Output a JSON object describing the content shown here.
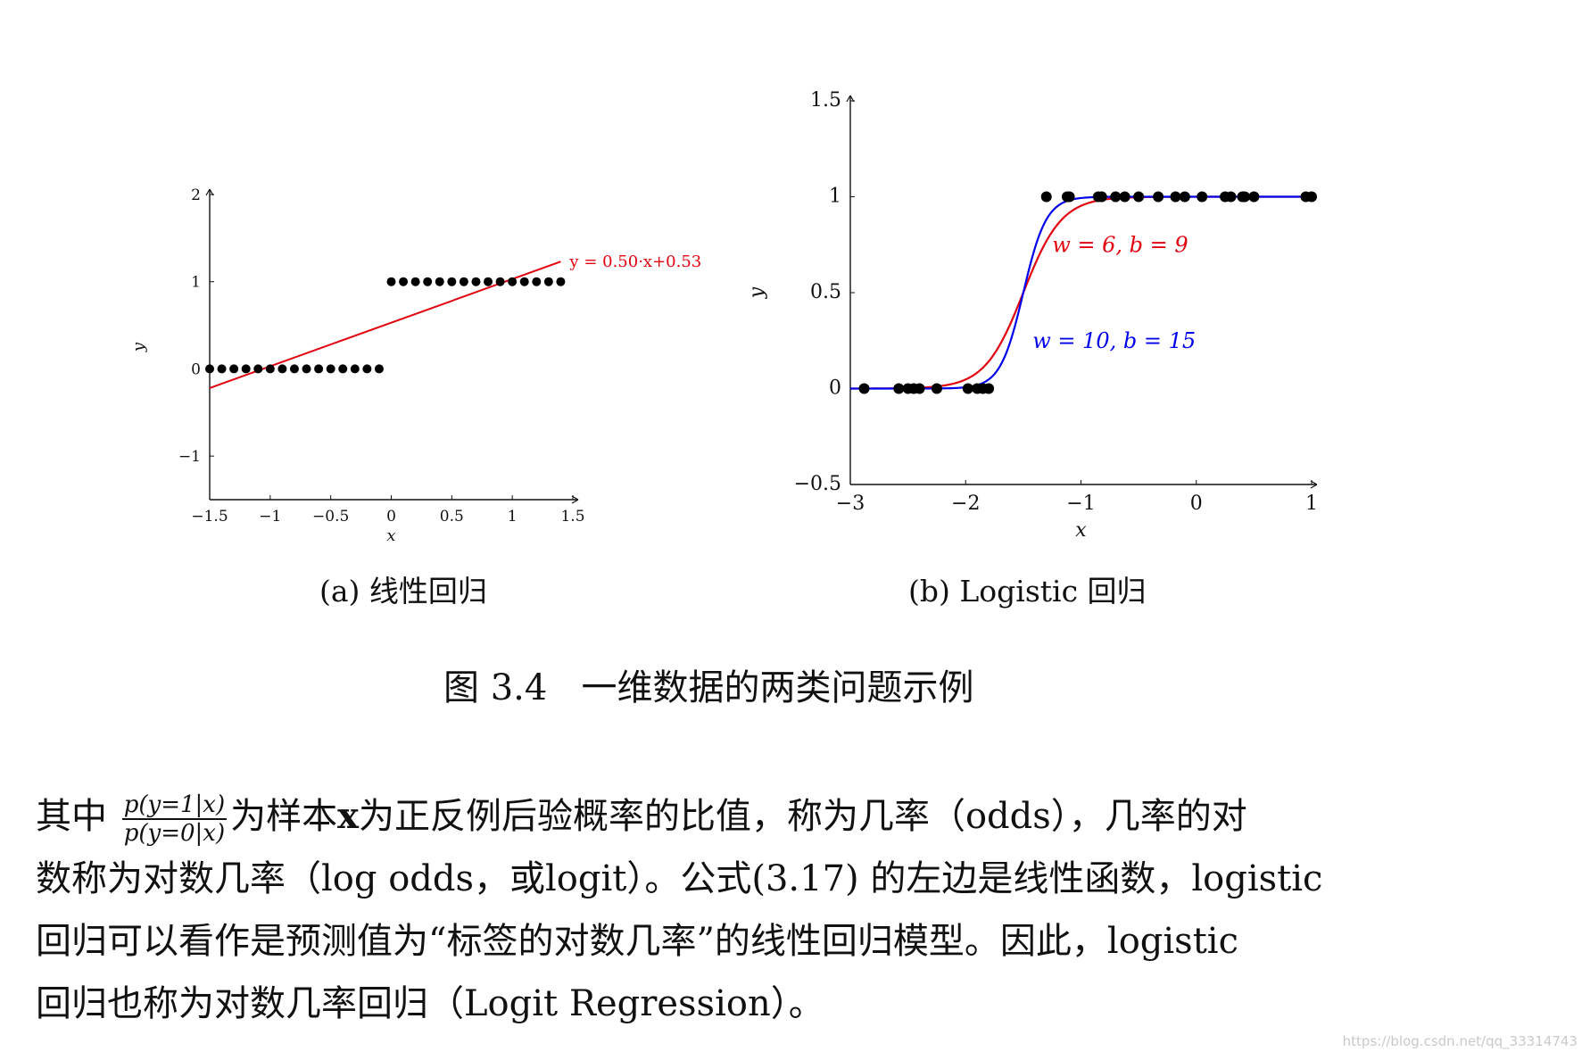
{
  "charts": [
    {
      "id": "a",
      "type": "scatter",
      "xlim": [
        -1.5,
        1.5
      ],
      "ylim": [
        -1.5,
        2
      ],
      "xticks": [
        "−1.5",
        "−1",
        "−0.5",
        "0",
        "0.5",
        "1",
        "1.5"
      ],
      "xtick_values": [
        -1.5,
        -1,
        -0.5,
        0,
        0.5,
        1,
        1.5
      ],
      "yticks": [
        "−1",
        "0",
        "1",
        "2"
      ],
      "ytick_values": [
        -1,
        0,
        1,
        2
      ],
      "xlabel": "x",
      "ylabel": "y",
      "points": {
        "class0_x": [
          -1.5,
          -1.4,
          -1.3,
          -1.2,
          -1.1,
          -1.0,
          -0.9,
          -0.8,
          -0.7,
          -0.6,
          -0.5,
          -0.4,
          -0.3,
          -0.2,
          -0.1
        ],
        "class0_y": 0,
        "class1_x": [
          0.0,
          0.1,
          0.2,
          0.3,
          0.4,
          0.5,
          0.6,
          0.7,
          0.8,
          0.9,
          1.0,
          1.1,
          1.2,
          1.3,
          1.4
        ],
        "class1_y": 1
      },
      "line": {
        "slope": 0.5,
        "intercept": 0.53,
        "color": "#e3000f",
        "x_range": [
          -1.5,
          1.4
        ]
      },
      "line_label": "y = 0.50·x+0.53",
      "caption": "(a) 线性回归"
    },
    {
      "id": "b",
      "type": "scatter",
      "xlim": [
        -3,
        1
      ],
      "ylim": [
        -0.5,
        1.5
      ],
      "xticks": [
        "−3",
        "−2",
        "−1",
        "0",
        "1"
      ],
      "xtick_values": [
        -3,
        -2,
        -1,
        0,
        1
      ],
      "yticks": [
        "−0.5",
        "0",
        "0.5",
        "1",
        "1.5"
      ],
      "ytick_values": [
        -0.5,
        0,
        0.5,
        1,
        1.5
      ],
      "xlabel": "x",
      "ylabel": "y",
      "points": {
        "class0_x": [
          -2.88,
          -2.58,
          -2.5,
          -2.45,
          -2.4,
          -2.25,
          -1.98,
          -1.9,
          -1.85,
          -1.8
        ],
        "class0_y": 0,
        "class1_x": [
          -1.3,
          -1.12,
          -1.1,
          -0.85,
          -0.82,
          -0.7,
          -0.62,
          -0.5,
          -0.33,
          -0.18,
          -0.1,
          0.05,
          0.25,
          0.3,
          0.4,
          0.42,
          0.5,
          0.95,
          1.0
        ],
        "class1_y": 1
      },
      "curves": [
        {
          "w": 6,
          "b": 9,
          "color": "#e3000f",
          "label": "w = 6, b = 9"
        },
        {
          "w": 10,
          "b": 15,
          "color": "#0000ee",
          "label": "w = 10, b = 15"
        }
      ],
      "caption": "(b) Logistic 回归"
    }
  ],
  "figure_caption": "图 3.4   一维数据的两类问题示例",
  "paragraph": {
    "line1_prefix": "其中",
    "frac_num": "p(y=1|x)",
    "frac_den": "p(y=0|x)",
    "line1_suffix_a": "为样本",
    "line1_x": "x",
    "line1_suffix_b": "为正反例后验概率的比值，称为几率（odds），几率的对",
    "line2": "数称为对数几率（log odds，或logit）。公式(3.17) 的左边是线性函数，logistic",
    "line3": "回归可以看作是预测值为“标签的对数几率”的线性回归模型。因此，logistic",
    "line4": "回归也称为对数几率回归（Logit Regression）。"
  },
  "watermark": "https://blog.csdn.net/qq_33314743"
}
